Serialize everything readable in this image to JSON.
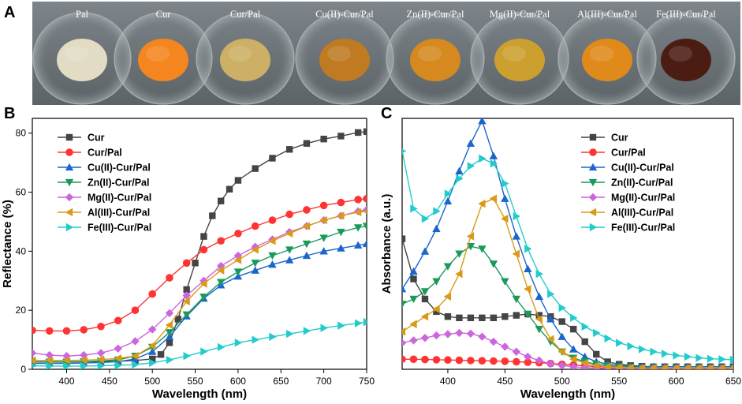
{
  "panel_labels": {
    "a": "A",
    "b": "B",
    "c": "C"
  },
  "photo": {
    "samples": [
      {
        "label": "Pal",
        "color": "#e2dcc4"
      },
      {
        "label": "Cur",
        "color": "#f5851e"
      },
      {
        "label": "Cur/Pal",
        "color": "#cdb066"
      },
      {
        "label": "Cu(II)-Cur/Pal",
        "color": "#bf7a22"
      },
      {
        "label": "Zn(II)-Cur/Pal",
        "color": "#d5891e"
      },
      {
        "label": "Mg(II)-Cur/Pal",
        "color": "#cba02e"
      },
      {
        "label": "Al(III)-Cur/Pal",
        "color": "#e08a1c"
      },
      {
        "label": "Fe(III)-Cur/Pal",
        "color": "#4a1c12"
      }
    ]
  },
  "chart_data": [
    {
      "type": "line",
      "panel": "B",
      "xlabel": "Wavelength (nm)",
      "ylabel": "Reflectance (%)",
      "xlim": [
        360,
        750
      ],
      "ylim": [
        0,
        85
      ],
      "xticks": [
        400,
        450,
        500,
        550,
        600,
        650,
        700,
        750
      ],
      "yticks": [
        0,
        20,
        40,
        60,
        80
      ],
      "legend_position": "top-left",
      "series": [
        {
          "name": "Cur",
          "color": "#444444",
          "marker": "square",
          "x": [
            360,
            380,
            400,
            420,
            440,
            460,
            480,
            500,
            510,
            520,
            530,
            540,
            550,
            560,
            570,
            580,
            590,
            600,
            620,
            640,
            660,
            680,
            700,
            720,
            740,
            750
          ],
          "y": [
            2.5,
            2.5,
            2.5,
            2.5,
            2.6,
            2.7,
            3.0,
            3.5,
            5,
            9,
            17,
            27,
            36,
            45,
            52,
            57,
            61,
            64,
            68,
            71.5,
            74.5,
            76.5,
            78,
            79,
            80.2,
            80.5
          ]
        },
        {
          "name": "Cur/Pal",
          "color": "#ff3333",
          "marker": "circle",
          "x": [
            360,
            380,
            400,
            420,
            440,
            460,
            480,
            500,
            520,
            540,
            560,
            580,
            600,
            620,
            640,
            660,
            680,
            700,
            720,
            740,
            750
          ],
          "y": [
            13.2,
            13.0,
            13.0,
            13.4,
            14.5,
            16.5,
            20,
            25.5,
            31,
            36,
            40.5,
            43.5,
            46,
            48.5,
            50.5,
            52.5,
            54,
            55.5,
            56.5,
            57.5,
            57.8
          ]
        },
        {
          "name": "Cu(II)-Cur/Pal",
          "color": "#1a66cc",
          "marker": "triangle-up",
          "x": [
            360,
            380,
            400,
            420,
            440,
            460,
            480,
            500,
            520,
            540,
            560,
            580,
            600,
            620,
            640,
            660,
            680,
            700,
            720,
            740,
            750
          ],
          "y": [
            2,
            2,
            2,
            2.1,
            2.3,
            2.6,
            3.5,
            6,
            11,
            18,
            24,
            28.5,
            31.5,
            33.5,
            35.5,
            37,
            38.5,
            40,
            41,
            42,
            42.5
          ]
        },
        {
          "name": "Zn(II)-Cur/Pal",
          "color": "#1a9a5a",
          "marker": "triangle-down",
          "x": [
            360,
            380,
            400,
            420,
            440,
            460,
            480,
            500,
            520,
            540,
            560,
            580,
            600,
            620,
            640,
            660,
            680,
            700,
            720,
            740,
            750
          ],
          "y": [
            2.5,
            2.5,
            2.5,
            2.6,
            2.8,
            3.2,
            4.5,
            7.5,
            12.5,
            18.5,
            24.5,
            29.5,
            33,
            36,
            38.5,
            40.5,
            42.5,
            44.5,
            46.5,
            48,
            48.5
          ]
        },
        {
          "name": "Mg(II)-Cur/Pal",
          "color": "#cc66dd",
          "marker": "diamond",
          "x": [
            360,
            380,
            400,
            420,
            440,
            460,
            480,
            500,
            520,
            540,
            560,
            580,
            600,
            620,
            640,
            660,
            680,
            700,
            720,
            740,
            750
          ],
          "y": [
            5.5,
            4.8,
            4.5,
            4.8,
            5.5,
            7,
            9.5,
            13.5,
            19,
            25,
            30,
            35,
            38.5,
            41.5,
            44,
            46.5,
            48.5,
            50.5,
            52,
            53.5,
            54
          ]
        },
        {
          "name": "Al(III)-Cur/Pal",
          "color": "#d99a1a",
          "marker": "triangle-left",
          "x": [
            360,
            380,
            400,
            420,
            440,
            460,
            480,
            500,
            520,
            540,
            560,
            580,
            600,
            620,
            640,
            660,
            680,
            700,
            720,
            740,
            750
          ],
          "y": [
            3,
            3,
            3,
            3.1,
            3.3,
            3.7,
            4.5,
            8,
            15,
            23,
            29,
            33.5,
            37,
            40.5,
            43.5,
            46,
            48.5,
            50.5,
            52,
            53.2,
            53.5
          ]
        },
        {
          "name": "Fe(III)-Cur/Pal",
          "color": "#22cccc",
          "marker": "triangle-right",
          "x": [
            360,
            380,
            400,
            420,
            440,
            460,
            480,
            500,
            520,
            540,
            560,
            580,
            600,
            620,
            640,
            660,
            680,
            700,
            720,
            740,
            750
          ],
          "y": [
            1.2,
            1.1,
            1.1,
            1.1,
            1.2,
            1.3,
            1.6,
            2.2,
            3.2,
            4.5,
            6,
            7.5,
            9,
            10,
            11,
            12,
            13,
            14,
            14.8,
            15.6,
            16
          ]
        }
      ]
    },
    {
      "type": "line",
      "panel": "C",
      "xlabel": "Wavelength (nm)",
      "ylabel": "Absorbance (a.u.)",
      "xlim": [
        360,
        650
      ],
      "ylim": [
        0,
        1
      ],
      "xticks": [
        400,
        450,
        500,
        550,
        600,
        650
      ],
      "yticks": [],
      "legend_position": "top-right",
      "series": [
        {
          "name": "Cur",
          "color": "#444444",
          "marker": "square",
          "x": [
            360,
            370,
            380,
            390,
            400,
            410,
            420,
            430,
            440,
            450,
            460,
            470,
            480,
            490,
            500,
            510,
            520,
            530,
            540,
            550,
            560,
            570,
            580,
            590,
            600,
            610,
            620,
            630,
            640,
            650
          ],
          "y": [
            0.52,
            0.36,
            0.28,
            0.23,
            0.21,
            0.205,
            0.205,
            0.205,
            0.205,
            0.21,
            0.215,
            0.22,
            0.215,
            0.21,
            0.19,
            0.16,
            0.11,
            0.06,
            0.03,
            0.02,
            0.015,
            0.012,
            0.01,
            0.01,
            0.01,
            0.01,
            0.01,
            0.01,
            0.01,
            0.01
          ]
        },
        {
          "name": "Cur/Pal",
          "color": "#ff3333",
          "marker": "circle",
          "x": [
            360,
            370,
            380,
            390,
            400,
            410,
            420,
            430,
            440,
            450,
            460,
            470,
            480,
            490,
            500,
            510,
            520,
            530,
            540,
            550,
            560,
            570,
            580,
            590,
            600,
            610,
            620,
            630,
            640,
            650
          ],
          "y": [
            0.04,
            0.04,
            0.039,
            0.038,
            0.037,
            0.036,
            0.035,
            0.034,
            0.033,
            0.032,
            0.03,
            0.028,
            0.026,
            0.023,
            0.02,
            0.017,
            0.014,
            0.011,
            0.009,
            0.007,
            0.006,
            0.005,
            0.005,
            0.004,
            0.004,
            0.004,
            0.004,
            0.004,
            0.004,
            0.004
          ]
        },
        {
          "name": "Cu(II)-Cur/Pal",
          "color": "#1a66cc",
          "marker": "triangle-up",
          "x": [
            360,
            370,
            380,
            390,
            400,
            410,
            420,
            430,
            440,
            450,
            460,
            470,
            480,
            490,
            500,
            510,
            520,
            530,
            540,
            550,
            560,
            570,
            580,
            590,
            600,
            610,
            620,
            630,
            640,
            650
          ],
          "y": [
            0.32,
            0.39,
            0.47,
            0.56,
            0.67,
            0.79,
            0.9,
            0.99,
            0.85,
            0.68,
            0.53,
            0.4,
            0.29,
            0.2,
            0.13,
            0.08,
            0.05,
            0.03,
            0.02,
            0.015,
            0.012,
            0.01,
            0.01,
            0.01,
            0.01,
            0.01,
            0.01,
            0.01,
            0.01,
            0.01
          ]
        },
        {
          "name": "Zn(II)-Cur/Pal",
          "color": "#1a9a5a",
          "marker": "triangle-down",
          "x": [
            360,
            370,
            380,
            390,
            400,
            410,
            420,
            430,
            440,
            450,
            460,
            470,
            480,
            490,
            500,
            510,
            520,
            530,
            540,
            550,
            560,
            570,
            580,
            590,
            600,
            610,
            620,
            630,
            640,
            650
          ],
          "y": [
            0.26,
            0.28,
            0.31,
            0.35,
            0.41,
            0.46,
            0.49,
            0.48,
            0.42,
            0.35,
            0.28,
            0.22,
            0.16,
            0.11,
            0.07,
            0.045,
            0.03,
            0.02,
            0.015,
            0.01,
            0.008,
            0.006,
            0.005,
            0.004,
            0.004,
            0.004,
            0.004,
            0.004,
            0.004,
            0.004
          ]
        },
        {
          "name": "Mg(II)-Cur/Pal",
          "color": "#cc66dd",
          "marker": "diamond",
          "x": [
            360,
            370,
            380,
            390,
            400,
            410,
            420,
            430,
            440,
            450,
            460,
            470,
            480,
            490,
            500,
            510,
            520,
            530,
            540,
            550,
            560,
            570,
            580,
            590,
            600,
            610,
            620,
            630,
            640,
            650
          ],
          "y": [
            0.105,
            0.115,
            0.125,
            0.135,
            0.14,
            0.145,
            0.142,
            0.13,
            0.11,
            0.09,
            0.07,
            0.05,
            0.035,
            0.022,
            0.015,
            0.01,
            0.007,
            0.005,
            0.004,
            0.003,
            0.003,
            0.003,
            0.003,
            0.003,
            0.003,
            0.003,
            0.003,
            0.003,
            0.003,
            0.003
          ]
        },
        {
          "name": "Al(III)-Cur/Pal",
          "color": "#d99a1a",
          "marker": "triangle-left",
          "x": [
            360,
            370,
            380,
            390,
            400,
            410,
            420,
            430,
            440,
            450,
            460,
            470,
            480,
            490,
            500,
            510,
            520,
            530,
            540,
            550,
            560,
            570,
            580,
            590,
            600,
            610,
            620,
            630,
            640,
            650
          ],
          "y": [
            0.15,
            0.18,
            0.21,
            0.24,
            0.29,
            0.38,
            0.53,
            0.66,
            0.68,
            0.6,
            0.46,
            0.32,
            0.2,
            0.12,
            0.07,
            0.04,
            0.025,
            0.015,
            0.01,
            0.008,
            0.006,
            0.005,
            0.005,
            0.005,
            0.005,
            0.005,
            0.005,
            0.005,
            0.005,
            0.005
          ]
        },
        {
          "name": "Fe(III)-Cur/Pal",
          "color": "#22cccc",
          "marker": "triangle-right",
          "x": [
            360,
            370,
            380,
            390,
            400,
            410,
            420,
            430,
            440,
            450,
            460,
            470,
            480,
            490,
            500,
            510,
            520,
            530,
            540,
            550,
            560,
            570,
            580,
            590,
            600,
            610,
            620,
            630,
            640,
            650
          ],
          "y": [
            0.87,
            0.64,
            0.6,
            0.63,
            0.7,
            0.76,
            0.81,
            0.84,
            0.82,
            0.74,
            0.61,
            0.48,
            0.38,
            0.3,
            0.245,
            0.205,
            0.17,
            0.145,
            0.123,
            0.105,
            0.092,
            0.08,
            0.07,
            0.062,
            0.055,
            0.05,
            0.045,
            0.042,
            0.04,
            0.038
          ]
        }
      ]
    }
  ]
}
